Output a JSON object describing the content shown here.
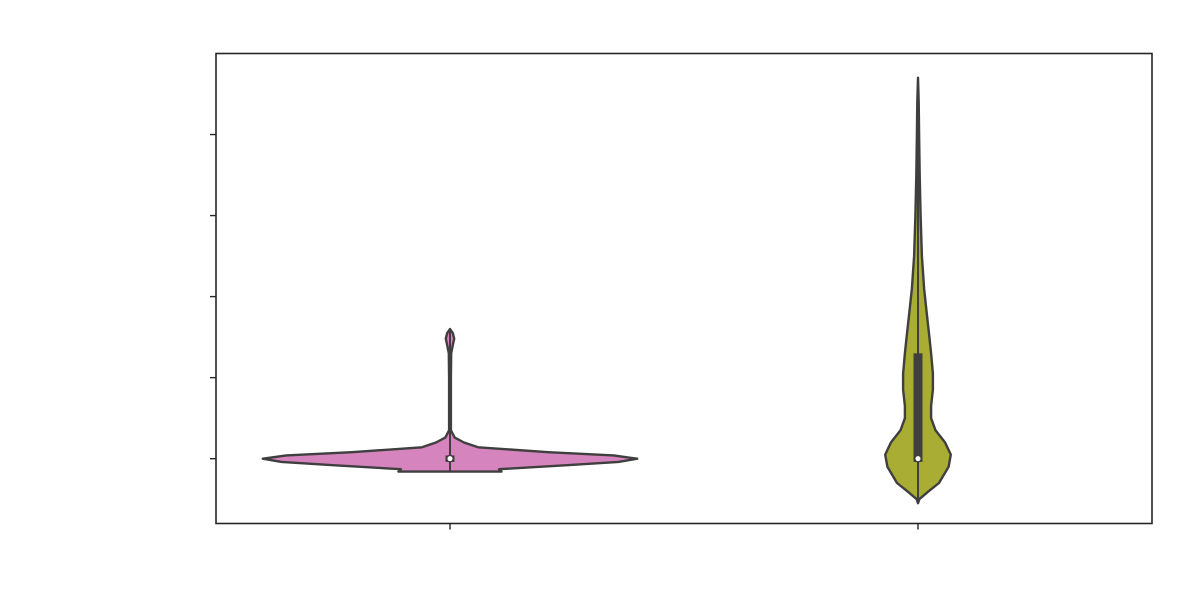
{
  "chart_data": {
    "type": "violin",
    "title": "",
    "xlabel": "",
    "ylabel": "",
    "categories": [
      "",
      ""
    ],
    "ylim": [
      -0.8,
      5.0
    ],
    "yticks": [
      0,
      1,
      2,
      3,
      4
    ],
    "grid": false,
    "legend": "none",
    "series": [
      {
        "color": "#d684bd",
        "median": 0.0,
        "q1": -0.04,
        "q3": 0.04,
        "whisker_low": -0.16,
        "whisker_high": 1.6,
        "max_width_fraction": 0.8,
        "density": [
          [
            -0.16,
            0.22
          ],
          [
            -0.13,
            0.21
          ],
          [
            -0.08,
            0.5
          ],
          [
            -0.04,
            0.72
          ],
          [
            0.0,
            0.8
          ],
          [
            0.04,
            0.7
          ],
          [
            0.08,
            0.42
          ],
          [
            0.14,
            0.12
          ],
          [
            0.2,
            0.06
          ],
          [
            0.26,
            0.02
          ],
          [
            0.35,
            0.004
          ],
          [
            0.5,
            0.004
          ],
          [
            1.0,
            0.004
          ],
          [
            1.3,
            0.005
          ],
          [
            1.4,
            0.012
          ],
          [
            1.48,
            0.018
          ],
          [
            1.55,
            0.012
          ],
          [
            1.6,
            0.0
          ]
        ]
      },
      {
        "color": "#a9ad33",
        "median": 0.0,
        "q1": -0.04,
        "q3": 1.3,
        "whisker_low": -0.55,
        "whisker_high": 4.7,
        "max_width_fraction": 0.14,
        "density": [
          [
            -0.55,
            0.0
          ],
          [
            -0.5,
            0.03
          ],
          [
            -0.4,
            0.25
          ],
          [
            -0.3,
            0.48
          ],
          [
            -0.1,
            0.7
          ],
          [
            0.05,
            0.75
          ],
          [
            0.2,
            0.62
          ],
          [
            0.35,
            0.4
          ],
          [
            0.5,
            0.3
          ],
          [
            0.65,
            0.3
          ],
          [
            0.85,
            0.34
          ],
          [
            1.05,
            0.34
          ],
          [
            1.3,
            0.3
          ],
          [
            1.5,
            0.26
          ],
          [
            1.8,
            0.2
          ],
          [
            2.1,
            0.14
          ],
          [
            2.5,
            0.09
          ],
          [
            3.0,
            0.06
          ],
          [
            3.5,
            0.04
          ],
          [
            4.0,
            0.025
          ],
          [
            4.4,
            0.015
          ],
          [
            4.7,
            0.0
          ]
        ]
      }
    ]
  }
}
